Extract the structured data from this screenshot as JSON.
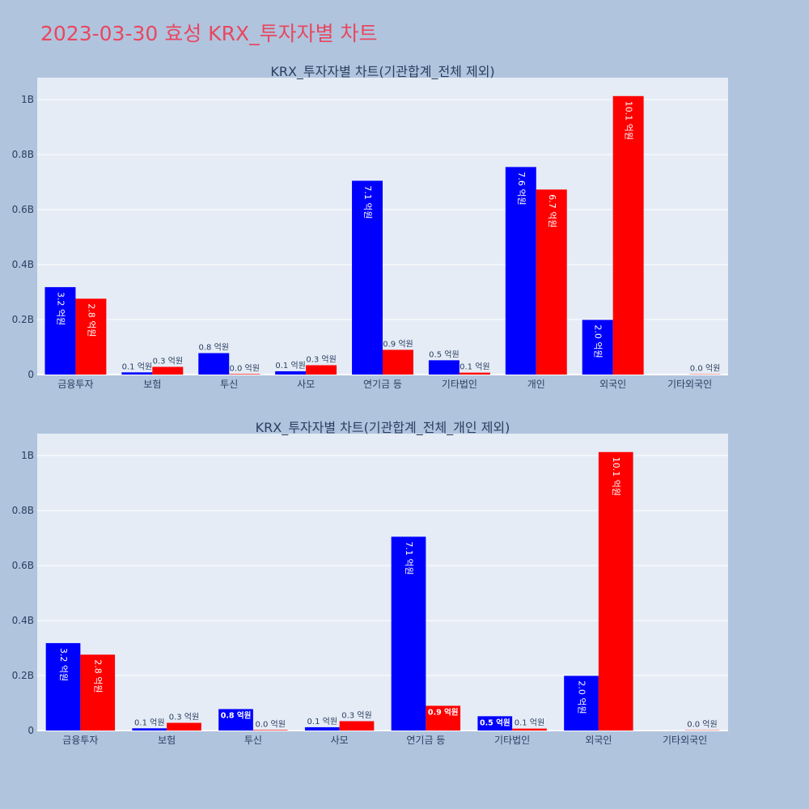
{
  "page": {
    "title": "2023-03-30 효성 KRX_투자자별 차트"
  },
  "colors": {
    "buy": "#0000ff",
    "sell": "#ff0000",
    "background": "#b0c4de",
    "plot_bg": "#e5ecf6",
    "title": "#e8475f",
    "text": "#2a3f5f"
  },
  "chart_data": [
    {
      "type": "bar",
      "title": "KRX_투자자별 차트(기관합계_전체 제외)",
      "categories": [
        "금융투자",
        "보험",
        "투신",
        "사모",
        "연기금 등",
        "기타법인",
        "개인",
        "외국인",
        "기타외국인"
      ],
      "series": [
        {
          "color": "#0000ff",
          "values": [
            318000000,
            8000000,
            78000000,
            12000000,
            705000000,
            52000000,
            755000000,
            199000000,
            0
          ],
          "labels": [
            "3.2 억원",
            "0.1 억원",
            "0.8 억원",
            "0.1 억원",
            "7.1 억원",
            "0.5 억원",
            "7.6 억원",
            "2.0 억원",
            ""
          ]
        },
        {
          "color": "#ff0000",
          "values": [
            276000000,
            28000000,
            2000000,
            34000000,
            90000000,
            7000000,
            673000000,
            1013000000,
            1000000
          ],
          "labels": [
            "2.8 억원",
            "0.3 억원",
            "0.0 억원",
            "0.3 억원",
            "0.9 억원",
            "0.1 억원",
            "6.7 억원",
            "10.1 억원",
            "0.0 억원"
          ]
        }
      ],
      "ylim": [
        0,
        1080000000
      ],
      "yticks": [
        {
          "value": 0,
          "label": "0"
        },
        {
          "value": 200000000,
          "label": "0.2B"
        },
        {
          "value": 400000000,
          "label": "0.4B"
        },
        {
          "value": 600000000,
          "label": "0.6B"
        },
        {
          "value": 800000000,
          "label": "0.8B"
        },
        {
          "value": 1000000000,
          "label": "1B"
        }
      ],
      "grid": true,
      "legend": "none"
    },
    {
      "type": "bar",
      "title": "KRX_투자자별 차트(기관합계_전체_개인 제외)",
      "categories": [
        "금융투자",
        "보험",
        "투신",
        "사모",
        "연기금 등",
        "기타법인",
        "외국인",
        "기타외국인"
      ],
      "series": [
        {
          "color": "#0000ff",
          "values": [
            318000000,
            8000000,
            78000000,
            12000000,
            705000000,
            52000000,
            199000000,
            0
          ],
          "labels": [
            "3.2 억원",
            "0.1 억원",
            "0.8 억원",
            "0.1 억원",
            "7.1 억원",
            "0.5 억원",
            "2.0 억원",
            ""
          ]
        },
        {
          "color": "#ff0000",
          "values": [
            276000000,
            28000000,
            2000000,
            34000000,
            90000000,
            7000000,
            1013000000,
            1000000
          ],
          "labels": [
            "2.8 억원",
            "0.3 억원",
            "0.0 억원",
            "0.3 억원",
            "0.9 억원",
            "0.1 억원",
            "10.1 억원",
            "0.0 억원"
          ]
        }
      ],
      "ylim": [
        0,
        1080000000
      ],
      "yticks": [
        {
          "value": 0,
          "label": "0"
        },
        {
          "value": 200000000,
          "label": "0.2B"
        },
        {
          "value": 400000000,
          "label": "0.4B"
        },
        {
          "value": 600000000,
          "label": "0.6B"
        },
        {
          "value": 800000000,
          "label": "0.8B"
        },
        {
          "value": 1000000000,
          "label": "1B"
        }
      ],
      "grid": true,
      "legend": "none"
    }
  ]
}
